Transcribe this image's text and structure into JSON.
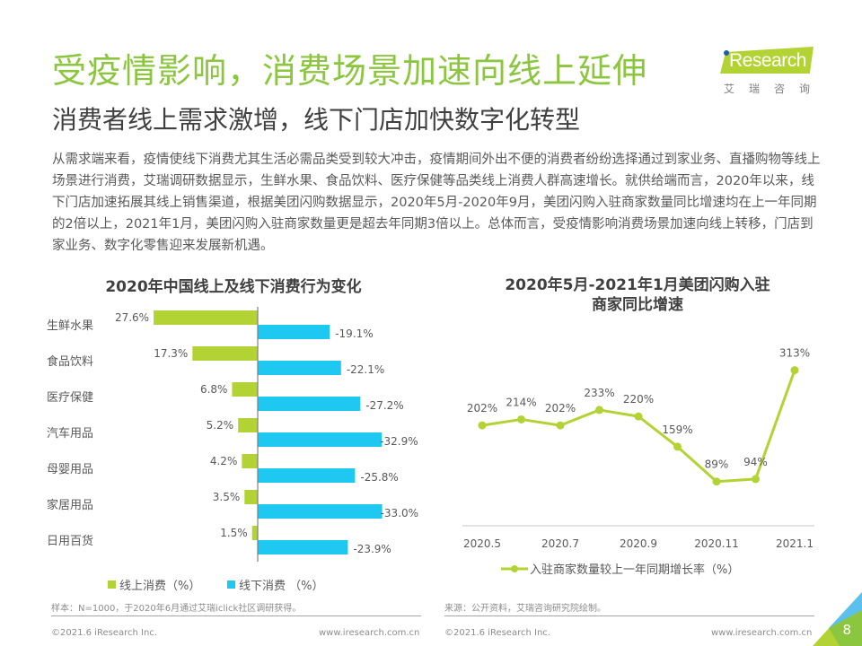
{
  "header": {
    "title": "受疫情影响，消费场景加速向线上延伸",
    "subtitle": "消费者线上需求激增，线下门店加快数字化转型",
    "logo_text": "Research",
    "logo_cn": "艾瑞咨询"
  },
  "body_text": "从需求端来看，疫情使线下消费尤其生活必需品类受到较大冲击，疫情期间外出不便的消费者纷纷选择通过到家业务、直播购物等线上场景进行消费，艾瑞调研数据显示，生鲜水果、食品饮料、医疗保健等品类线上消费人群高速增长。就供给端而言，2020年以来，线下门店加速拓展其线上销售渠道，根据美团闪购数据显示，2020年5月-2020年9月，美团闪购入驻商家数量同比增速均在上一年同期的2倍以上，2021年1月，美团闪购入驻商家数量更是超去年同期3倍以上。总体而言，受疫情影响消费场景加速向线上转移，门店到家业务、数字化零售迎来发展新机遇。",
  "colors": {
    "title_green": "#8cc63f",
    "online": "#b3d334",
    "offline": "#1ec8f0",
    "line": "#b3d334"
  },
  "chart_data": [
    {
      "type": "bar",
      "orientation": "horizontal",
      "title": "2020年中国线上及线下消费行为变化",
      "categories": [
        "生鲜水果",
        "食品饮料",
        "医疗保健",
        "汽车用品",
        "母婴用品",
        "家居用品",
        "日用百货"
      ],
      "series": [
        {
          "name": "线上消费（%）",
          "values": [
            27.6,
            17.3,
            6.8,
            5.2,
            4.2,
            3.5,
            1.5
          ],
          "labels": [
            "27.6%",
            "17.3%",
            "6.8%",
            "5.2%",
            "4.2%",
            "3.5%",
            "1.5%"
          ]
        },
        {
          "name": "线下消费 （%）",
          "values": [
            -19.1,
            -22.1,
            -27.2,
            -32.9,
            -25.8,
            -33.0,
            -23.9
          ],
          "labels": [
            "-19.1%",
            "-22.1%",
            "-27.2%",
            "-32.9%",
            "-25.8%",
            "-33.0%",
            "-23.9%"
          ]
        }
      ],
      "legend": "bottom",
      "grid": false,
      "note": "样本：N=1000，于2020年6月通过艾瑞iclick社区调研获得。"
    },
    {
      "type": "line",
      "title": "2020年5月-2021年1月美团闪购入驻商家同比增速",
      "x": [
        "2020.5",
        "2020.6",
        "2020.7",
        "2020.8",
        "2020.9",
        "2020.10",
        "2020.11",
        "2020.12",
        "2021.1"
      ],
      "x_tick_labels": [
        "2020.5",
        "2020.7",
        "2020.9",
        "2020.11",
        "2021.1"
      ],
      "series": [
        {
          "name": "入驻商家数量较上一年同期增长率（%）",
          "values": [
            202,
            214,
            202,
            233,
            220,
            159,
            89,
            94,
            313
          ],
          "labels": [
            "202%",
            "214%",
            "202%",
            "233%",
            "220%",
            "159%",
            "89%",
            "94%",
            "313%"
          ]
        }
      ],
      "ylim": [
        0,
        313
      ],
      "legend": "bottom",
      "grid": false,
      "note": "来源：公开资料，艾瑞咨询研究院绘制。"
    }
  ],
  "footer": {
    "copyright_left": "©2021.6 iResearch Inc.",
    "url_left": "www.iresearch.com.cn",
    "copyright_right": "©2021.6 iResearch Inc.",
    "url_right": "www.iresearch.com.cn",
    "page": "8"
  }
}
